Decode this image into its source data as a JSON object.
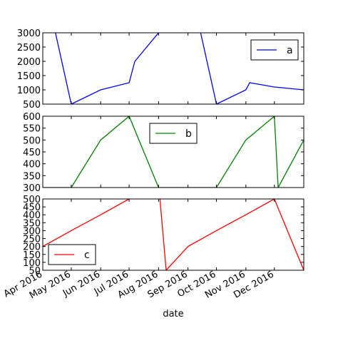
{
  "chart_data": {
    "type": "line",
    "xlabel": "date",
    "x": [
      "2016-03-31",
      "2016-04-30",
      "2016-05-31",
      "2016-06-30",
      "2016-07-31",
      "2016-08-31",
      "2016-09-30",
      "2016-10-31",
      "2016-11-30",
      "2016-12-31"
    ],
    "x_ticks": [
      "Apr 2016",
      "May 2016",
      "Jun 2016",
      "Jul 2016",
      "Aug 2016",
      "Sep 2016",
      "Oct 2016",
      "Nov 2016",
      "Dec 2016"
    ],
    "xlim": [
      "2016-03-31",
      "2016-12-31"
    ],
    "subplots": [
      {
        "name": "a",
        "legend": "a",
        "legend_position": "upper right",
        "color": "#0000ff",
        "ylim": [
          500,
          3000
        ],
        "yticks": [
          500,
          1000,
          1500,
          2000,
          2500,
          3000
        ],
        "values": [
          [
            "2016-03-31",
            5000
          ],
          [
            "2016-04-30",
            500
          ],
          [
            "2016-05-31",
            1000
          ],
          [
            "2016-06-30",
            1250
          ],
          [
            "2016-07-06",
            2000
          ],
          [
            "2016-07-31",
            3000
          ],
          [
            "2016-08-31",
            5000
          ],
          [
            "2016-09-30",
            500
          ],
          [
            "2016-10-31",
            1000
          ],
          [
            "2016-11-04",
            1250
          ],
          [
            "2016-11-30",
            1100
          ],
          [
            "2016-12-31",
            1000
          ]
        ]
      },
      {
        "name": "b",
        "legend": "b",
        "legend_position": "upper center",
        "color": "#008000",
        "ylim": [
          300,
          600
        ],
        "yticks": [
          300,
          350,
          400,
          450,
          500,
          550,
          600
        ],
        "values": [
          [
            "2016-03-31",
            300
          ],
          [
            "2016-04-30",
            300
          ],
          [
            "2016-05-31",
            500
          ],
          [
            "2016-06-30",
            600
          ],
          [
            "2016-07-31",
            300
          ],
          [
            "2016-08-31",
            300
          ],
          [
            "2016-09-30",
            300
          ],
          [
            "2016-10-31",
            500
          ],
          [
            "2016-11-30",
            600
          ],
          [
            "2016-12-04",
            300
          ],
          [
            "2016-12-31",
            500
          ]
        ]
      },
      {
        "name": "c",
        "legend": "c",
        "legend_position": "lower left",
        "color": "#ff0000",
        "ylim": [
          50,
          500
        ],
        "yticks": [
          50,
          100,
          150,
          200,
          250,
          300,
          350,
          400,
          450,
          500
        ],
        "values": [
          [
            "2016-03-31",
            200
          ],
          [
            "2016-04-30",
            300
          ],
          [
            "2016-05-31",
            400
          ],
          [
            "2016-06-30",
            500
          ],
          [
            "2016-07-31",
            600
          ],
          [
            "2016-08-08",
            50
          ],
          [
            "2016-08-31",
            200
          ],
          [
            "2016-09-30",
            300
          ],
          [
            "2016-10-31",
            400
          ],
          [
            "2016-11-30",
            500
          ],
          [
            "2016-12-31",
            50
          ]
        ]
      }
    ],
    "grid": false
  }
}
